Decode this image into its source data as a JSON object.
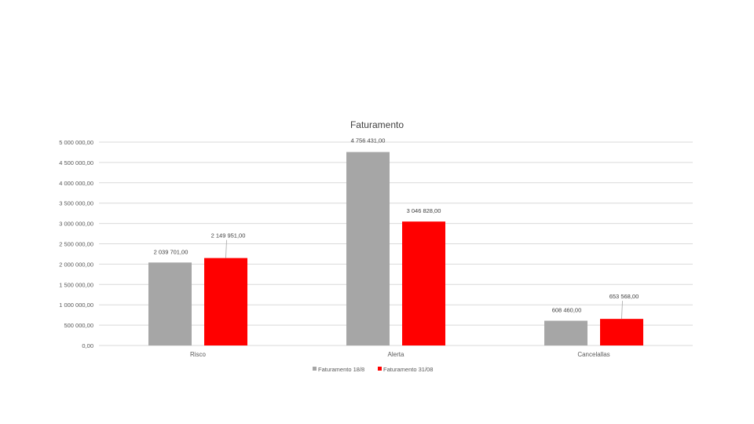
{
  "chart_data": {
    "type": "bar",
    "title": "Faturamento",
    "categories": [
      "Risco",
      "Alerta",
      "Cancelallas"
    ],
    "series": [
      {
        "name": "Faturamento 18/8",
        "color": "#a6a6a6",
        "values": [
          2039701,
          4756431,
          608460
        ],
        "labels": [
          "2 039 701,00",
          "4 756 431,00",
          "608 460,00"
        ]
      },
      {
        "name": "Faturamento 31/08",
        "color": "#ff0000",
        "values": [
          2149951,
          3046828,
          653568
        ],
        "labels": [
          "2 149 951,00",
          "3 046 828,00",
          "653 568,00"
        ]
      }
    ],
    "ylim": [
      0,
      5000000
    ],
    "yticks": [
      0,
      500000,
      1000000,
      1500000,
      2000000,
      2500000,
      3000000,
      3500000,
      4000000,
      4500000,
      5000000
    ],
    "ytick_labels": [
      "0,00",
      "500 000,00",
      "1 000 000,00",
      "1 500 000,00",
      "2 000 000,00",
      "2 500 000,00",
      "3 000 000,00",
      "3 500 000,00",
      "4 000 000,00",
      "4 500 000,00",
      "5 000 000,00"
    ],
    "grid": true,
    "legend_position": "bottom"
  }
}
